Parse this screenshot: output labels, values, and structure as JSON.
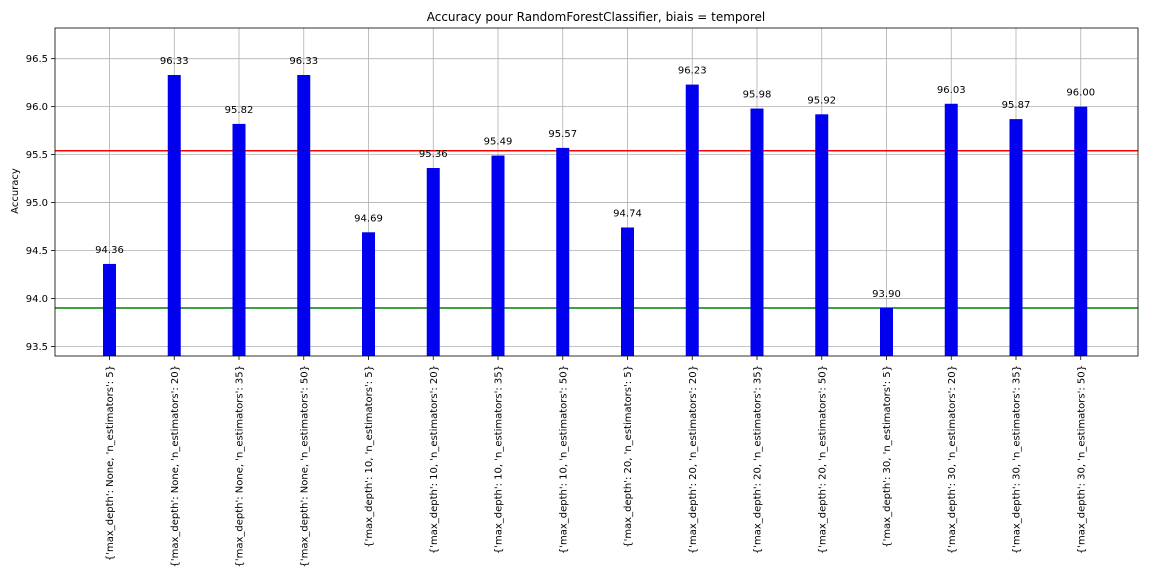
{
  "chart_data": {
    "type": "bar",
    "title": "Accuracy pour RandomForestClassifier, biais = temporel",
    "xlabel": "",
    "ylabel": "Accuracy",
    "ylim": [
      93.4,
      96.82
    ],
    "yticks": [
      93.5,
      94.0,
      94.5,
      95.0,
      95.5,
      96.0,
      96.5
    ],
    "grid": true,
    "bar_color": "#0000ee",
    "categories": [
      "{'max_depth': None, 'n_estimators': 5}",
      "{'max_depth': None, 'n_estimators': 20}",
      "{'max_depth': None, 'n_estimators': 35}",
      "{'max_depth': None, 'n_estimators': 50}",
      "{'max_depth': 10, 'n_estimators': 5}",
      "{'max_depth': 10, 'n_estimators': 20}",
      "{'max_depth': 10, 'n_estimators': 35}",
      "{'max_depth': 10, 'n_estimators': 50}",
      "{'max_depth': 20, 'n_estimators': 5}",
      "{'max_depth': 20, 'n_estimators': 20}",
      "{'max_depth': 20, 'n_estimators': 35}",
      "{'max_depth': 20, 'n_estimators': 50}",
      "{'max_depth': 30, 'n_estimators': 5}",
      "{'max_depth': 30, 'n_estimators': 20}",
      "{'max_depth': 30, 'n_estimators': 35}",
      "{'max_depth': 30, 'n_estimators': 50}"
    ],
    "values": [
      94.36,
      96.33,
      95.82,
      96.33,
      94.69,
      95.36,
      95.49,
      95.57,
      94.74,
      96.23,
      95.98,
      95.92,
      93.9,
      96.03,
      95.87,
      96.0
    ],
    "value_labels": [
      "94.36",
      "96.33",
      "95.82",
      "96.33",
      "94.69",
      "95.36",
      "95.49",
      "95.57",
      "94.74",
      "96.23",
      "95.98",
      "95.92",
      "93.90",
      "96.03",
      "95.87",
      "96.00"
    ],
    "hlines": [
      {
        "name": "mean-line",
        "value": 95.54,
        "color": "#ff0000"
      },
      {
        "name": "min-line",
        "value": 93.9,
        "color": "#008000"
      }
    ]
  }
}
